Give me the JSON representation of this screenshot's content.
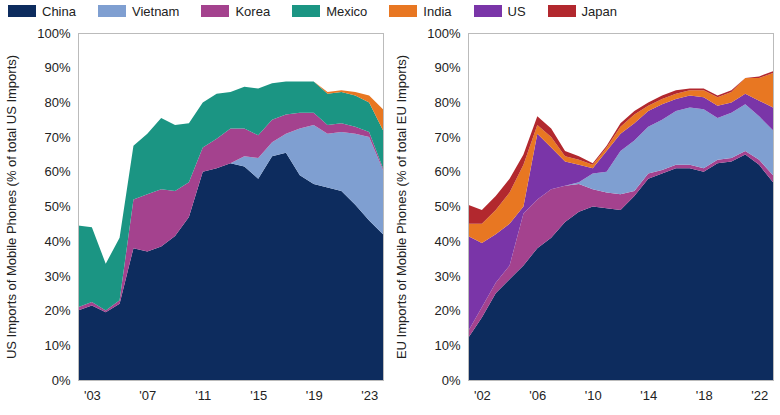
{
  "chart_data": [
    {
      "type": "area",
      "stacked": true,
      "grid": false,
      "y_label": "US Imports of Mobile Phones (% of total US Imports)",
      "x": [
        2002,
        2003,
        2004,
        2005,
        2006,
        2007,
        2008,
        2009,
        2010,
        2011,
        2012,
        2013,
        2014,
        2015,
        2016,
        2017,
        2018,
        2019,
        2020,
        2021,
        2022,
        2023,
        2024
      ],
      "xlim": [
        2002,
        2024
      ],
      "xticks": [
        {
          "value": 2003,
          "label": "'03"
        },
        {
          "value": 2007,
          "label": "'07"
        },
        {
          "value": 2011,
          "label": "'11"
        },
        {
          "value": 2015,
          "label": "'15"
        },
        {
          "value": 2019,
          "label": "'19"
        },
        {
          "value": 2023,
          "label": "'23"
        }
      ],
      "ylim": [
        0,
        100
      ],
      "yticks": [
        {
          "value": 0,
          "label": "0%"
        },
        {
          "value": 10,
          "label": "10%"
        },
        {
          "value": 20,
          "label": "20%"
        },
        {
          "value": 30,
          "label": "30%"
        },
        {
          "value": 40,
          "label": "40%"
        },
        {
          "value": 50,
          "label": "50%"
        },
        {
          "value": 60,
          "label": "60%"
        },
        {
          "value": 70,
          "label": "70%"
        },
        {
          "value": 80,
          "label": "80%"
        },
        {
          "value": 90,
          "label": "90%"
        },
        {
          "value": 100,
          "label": "100%"
        }
      ],
      "series": [
        {
          "name": "China",
          "color": "#0d2c5e",
          "values": [
            20,
            21.5,
            19.5,
            22,
            38,
            37,
            38.5,
            41.5,
            47,
            60,
            61,
            62.5,
            61.5,
            58,
            64.5,
            65.5,
            59,
            56.5,
            55.5,
            54.5,
            50.5,
            46,
            42
          ]
        },
        {
          "name": "Vietnam",
          "color": "#7f9fd1",
          "values": [
            0,
            0,
            0,
            0,
            0,
            0,
            0,
            0,
            0,
            0,
            0,
            0,
            3,
            6,
            4,
            5.5,
            13.5,
            17,
            15.5,
            17,
            20.5,
            24,
            18.5
          ]
        },
        {
          "name": "Korea",
          "color": "#a4428e",
          "values": [
            1,
            1,
            0.5,
            1,
            14,
            16.5,
            16.5,
            13,
            10,
            7,
            8.5,
            10,
            8,
            6.5,
            6.5,
            5.5,
            4.5,
            3.5,
            2.5,
            2.5,
            2,
            1.5,
            0.5
          ]
        },
        {
          "name": "Mexico",
          "color": "#1b9583",
          "values": [
            23.5,
            21.5,
            13.5,
            18,
            15.5,
            17.5,
            20.5,
            19,
            17,
            13,
            13,
            10.5,
            12,
            13.5,
            10.5,
            9.5,
            9,
            9,
            9,
            9,
            9,
            8.5,
            11
          ]
        },
        {
          "name": "India",
          "color": "#e87722",
          "values": [
            0,
            0,
            0,
            0,
            0,
            0,
            0,
            0,
            0,
            0,
            0,
            0,
            0,
            0,
            0,
            0,
            0,
            0,
            0.5,
            0.5,
            1,
            2,
            6
          ]
        }
      ]
    },
    {
      "type": "area",
      "stacked": true,
      "grid": false,
      "y_label": "EU Imports of Mobile Phones (% of total EU Imports)",
      "x": [
        2001,
        2002,
        2003,
        2004,
        2005,
        2006,
        2007,
        2008,
        2009,
        2010,
        2011,
        2012,
        2013,
        2014,
        2015,
        2016,
        2017,
        2018,
        2019,
        2020,
        2021,
        2022,
        2023
      ],
      "xlim": [
        2001,
        2023
      ],
      "xticks": [
        {
          "value": 2002,
          "label": "'02"
        },
        {
          "value": 2006,
          "label": "'06"
        },
        {
          "value": 2010,
          "label": "'10"
        },
        {
          "value": 2014,
          "label": "'14"
        },
        {
          "value": 2018,
          "label": "'18"
        },
        {
          "value": 2022,
          "label": "'22"
        }
      ],
      "ylim": [
        0,
        100
      ],
      "yticks": [
        {
          "value": 0,
          "label": "0%"
        },
        {
          "value": 10,
          "label": "10%"
        },
        {
          "value": 20,
          "label": "20%"
        },
        {
          "value": 30,
          "label": "30%"
        },
        {
          "value": 40,
          "label": "40%"
        },
        {
          "value": 50,
          "label": "50%"
        },
        {
          "value": 60,
          "label": "60%"
        },
        {
          "value": 70,
          "label": "70%"
        },
        {
          "value": 80,
          "label": "80%"
        },
        {
          "value": 90,
          "label": "90%"
        },
        {
          "value": 100,
          "label": "100%"
        }
      ],
      "series": [
        {
          "name": "China",
          "color": "#0d2c5e",
          "values": [
            12,
            18,
            25,
            29,
            33,
            38,
            41,
            45.5,
            48.5,
            50,
            49.5,
            49,
            53,
            58,
            59.5,
            61,
            61,
            60,
            62.5,
            63,
            65,
            62,
            57
          ]
        },
        {
          "name": "Korea",
          "color": "#a4428e",
          "values": [
            2,
            3,
            3,
            4,
            15,
            14,
            14,
            10.5,
            8,
            5,
            4.5,
            4.5,
            1.5,
            1.5,
            1,
            1,
            1,
            1,
            1,
            1,
            1,
            1.5,
            2
          ]
        },
        {
          "name": "Vietnam",
          "color": "#7f9fd1",
          "values": [
            0,
            0,
            0,
            0,
            0,
            0,
            0,
            0,
            0.5,
            4.5,
            6,
            12.5,
            14.5,
            13.5,
            14.5,
            15.5,
            16.5,
            17,
            12,
            13,
            13.5,
            12.5,
            13
          ]
        },
        {
          "name": "US",
          "color": "#7a35a8",
          "values": [
            27.5,
            18.5,
            14,
            12,
            2,
            19,
            12,
            7,
            5,
            1.5,
            6,
            5,
            5,
            4.5,
            4.5,
            3.5,
            3.5,
            3.5,
            3.5,
            3,
            3,
            4.5,
            6.5
          ]
        },
        {
          "name": "India",
          "color": "#e87722",
          "values": [
            3.5,
            5.5,
            7,
            9,
            12,
            2.5,
            3,
            1.5,
            1.5,
            1,
            1,
            2,
            2.5,
            1.5,
            1.5,
            1.5,
            1.5,
            2,
            2.5,
            3,
            4.5,
            6.5,
            10
          ]
        },
        {
          "name": "Japan",
          "color": "#b2282e",
          "values": [
            5.5,
            4,
            4,
            4,
            3,
            2.5,
            2.5,
            1.5,
            1,
            0.5,
            0.5,
            1,
            1,
            1,
            1,
            1,
            0.5,
            0.5,
            0.5,
            0.5,
            0,
            0.5,
            0.5
          ]
        }
      ]
    }
  ]
}
